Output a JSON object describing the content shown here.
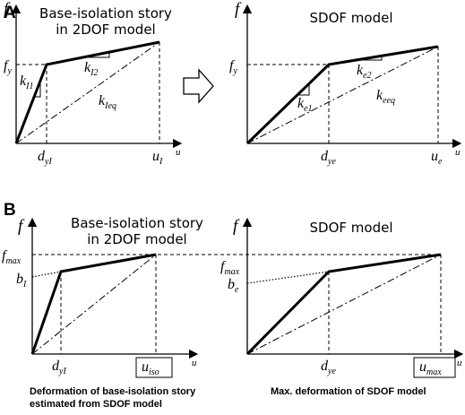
{
  "panels": {
    "A": {
      "label": "A",
      "left": {
        "title_line1": "Base-isolation story",
        "title_line2": "in 2DOF model",
        "y_axis": "f",
        "x_axis": "u",
        "fy": "f",
        "fy_sub": "y",
        "k_I1": "k",
        "k_I1_sub": "I1",
        "k_I2": "k",
        "k_I2_sub": "I2",
        "k_Ieq": "k",
        "k_Ieq_sub": "Ieq",
        "dyI": "d",
        "dyI_sub": "yI",
        "uI": "u",
        "uI_sub": "I"
      },
      "right": {
        "title": "SDOF model",
        "y_axis": "f",
        "x_axis": "u",
        "fy": "f",
        "fy_sub": "y",
        "k_e1": "k",
        "k_e1_sub": "e1",
        "k_e2": "k",
        "k_e2_sub": "e2",
        "k_eeq": "k",
        "k_eeq_sub": "eeq",
        "dye": "d",
        "dye_sub": "ye",
        "ue": "u",
        "ue_sub": "e"
      }
    },
    "B": {
      "label": "B",
      "left": {
        "title_line1": "Base-isolation story",
        "title_line2": "in 2DOF model",
        "y_axis": "f",
        "x_axis": "u",
        "fmax": "f",
        "fmax_sub": "max",
        "bI": "b",
        "bI_sub": "I",
        "dyI": "d",
        "dyI_sub": "yI",
        "uiso": "u",
        "uiso_sub": "iso",
        "note_line1": "Deformation of base-isolation story",
        "note_line2": "estimated from SDOF model"
      },
      "right": {
        "title": "SDOF model",
        "y_axis": "f",
        "x_axis": "u",
        "fmax": "f",
        "fmax_sub": "max",
        "be": "b",
        "be_sub": "e",
        "dye": "d",
        "dye_sub": "ye",
        "umax": "u",
        "umax_sub": "max",
        "note": "Max. deformation of SDOF model"
      }
    }
  }
}
